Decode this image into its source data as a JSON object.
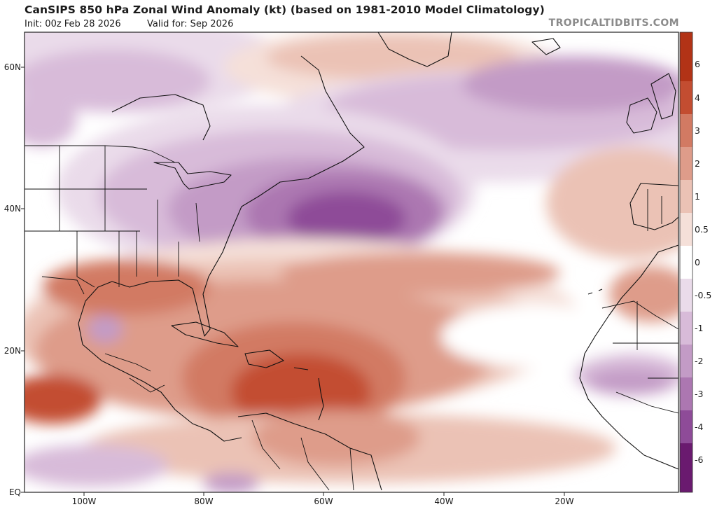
{
  "header": {
    "title": "CanSIPS 850 hPa Zonal Wind Anomaly (kt) (based on 1981-2010 Model Climatology)",
    "init": "Init: 00z Feb 28 2026",
    "valid": "Valid for: Sep 2026",
    "credit": "TROPICALTIDBITS.COM"
  },
  "map": {
    "variable": "850 hPa zonal wind anomaly",
    "units": "kt",
    "latitude_labels": [
      "60N",
      "40N",
      "20N",
      "EQ"
    ],
    "longitude_labels": [
      "100W",
      "80W",
      "60W",
      "40W",
      "20W"
    ]
  },
  "colorbar": {
    "labels": [
      "6",
      "4",
      "3",
      "2",
      "1",
      "0.5",
      "0",
      "-0.5",
      "-1",
      "-2",
      "-3",
      "-4",
      "-6"
    ],
    "colors": {
      "pos_6": "#b23316",
      "pos_4": "#c34d31",
      "pos_3": "#d27a63",
      "pos_2": "#de9c8a",
      "pos_1": "#ebc2b5",
      "pos_05": "#f5e0d9",
      "zero": "#ffffff",
      "neg_05": "#eadbea",
      "neg_1": "#d8bbd9",
      "neg_2": "#c39bc6",
      "neg_3": "#ac77b1",
      "neg_4": "#8e4b98",
      "neg_6": "#6a1a6f"
    }
  }
}
